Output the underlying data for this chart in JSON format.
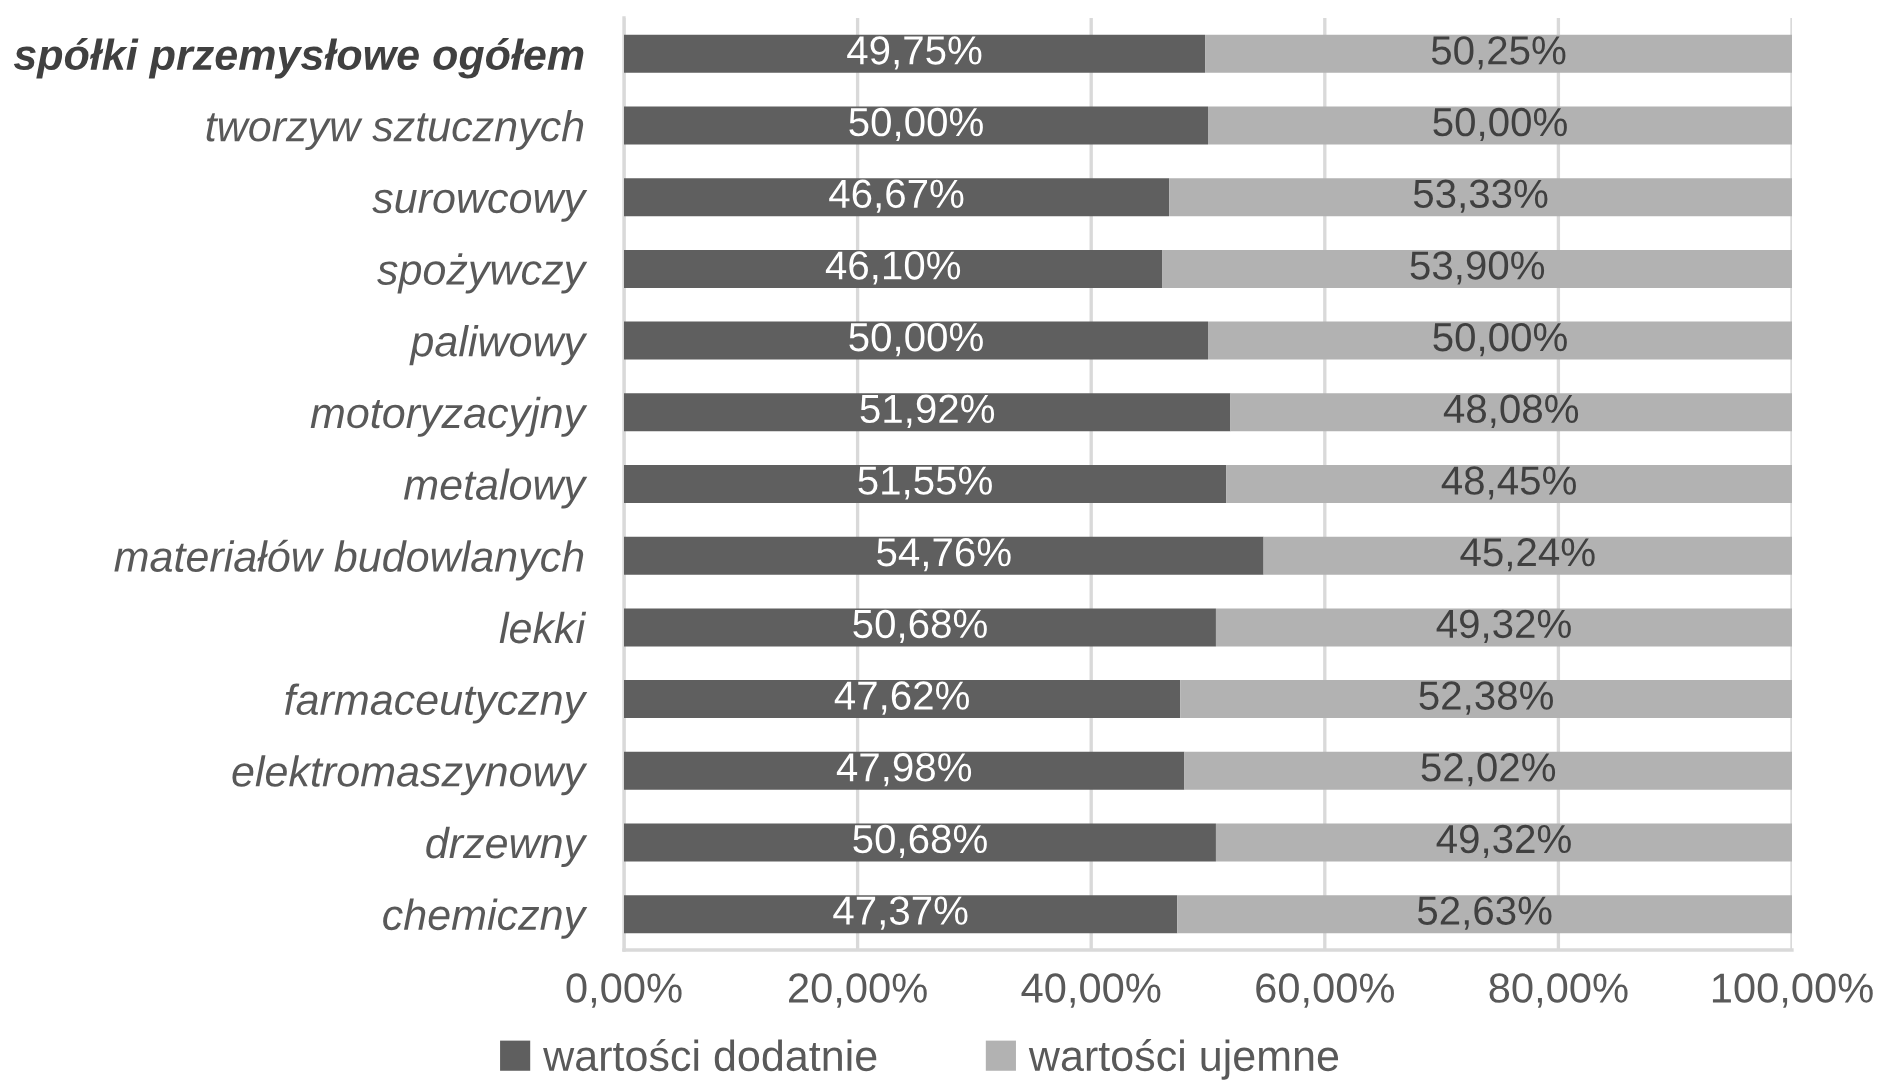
{
  "chart_data": {
    "type": "bar",
    "orientation": "horizontal",
    "stacked": true,
    "categories": [
      "spółki przemysłowe ogółem",
      "tworzyw sztucznych",
      "surowcowy",
      "spożywczy",
      "paliwowy",
      "motoryzacyjny",
      "metalowy",
      "materiałów budowlanych",
      "lekki",
      "farmaceutyczny",
      "elektromaszynowy",
      "drzewny",
      "chemiczny"
    ],
    "series": [
      {
        "name": "wartości dodatnie",
        "color": "#5f5f5f",
        "values": [
          49.75,
          50.0,
          46.67,
          46.1,
          50.0,
          51.92,
          51.55,
          54.76,
          50.68,
          47.62,
          47.98,
          50.68,
          47.37
        ],
        "value_labels": [
          "49,75%",
          "50,00%",
          "46,67%",
          "46,10%",
          "50,00%",
          "51,92%",
          "51,55%",
          "54,76%",
          "50,68%",
          "47,62%",
          "47,98%",
          "50,68%",
          "47,37%"
        ]
      },
      {
        "name": "wartości ujemne",
        "color": "#b2b2b2",
        "values": [
          50.25,
          50.0,
          53.33,
          53.9,
          50.0,
          48.08,
          48.45,
          45.24,
          49.32,
          52.38,
          52.02,
          49.32,
          52.63
        ],
        "value_labels": [
          "50,25%",
          "50,00%",
          "53,33%",
          "53,90%",
          "50,00%",
          "48,08%",
          "48,45%",
          "45,24%",
          "49,32%",
          "52,38%",
          "52,02%",
          "49,32%",
          "52,63%"
        ]
      }
    ],
    "xlim": [
      0,
      100
    ],
    "xticks": [
      {
        "value": 0,
        "label": "0,00%"
      },
      {
        "value": 20,
        "label": "20,00%"
      },
      {
        "value": 40,
        "label": "40,00%"
      },
      {
        "value": 60,
        "label": "60,00%"
      },
      {
        "value": 80,
        "label": "80,00%"
      },
      {
        "value": 100,
        "label": "100,00%"
      }
    ],
    "grid": "x",
    "legend": "bottom"
  }
}
